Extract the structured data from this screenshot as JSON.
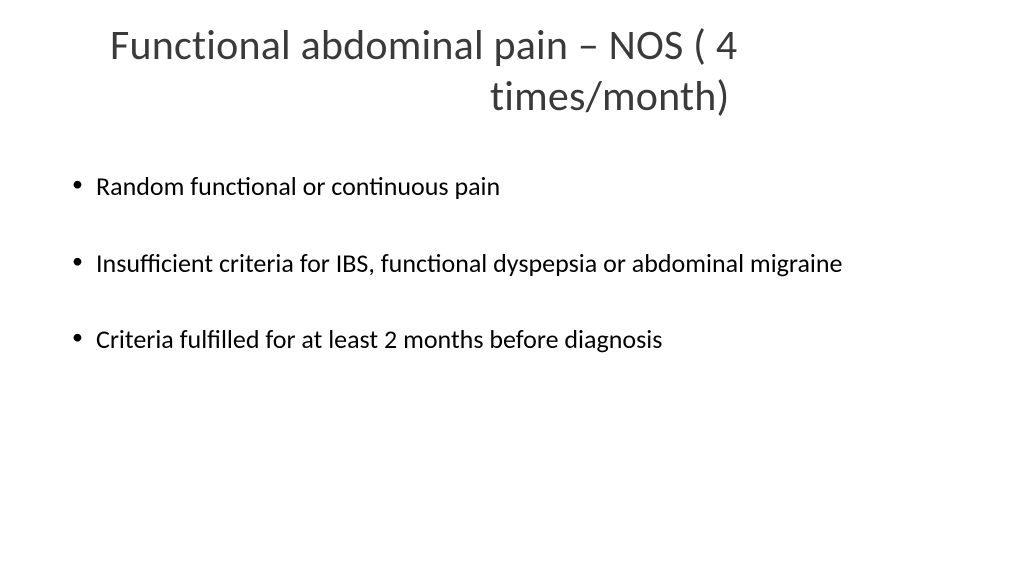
{
  "slide": {
    "title_line1": "Functional abdominal pain – NOS ( 4",
    "title_line2": "times/month)",
    "bullets": [
      "Random functional or continuous pain",
      "Insufficient criteria for IBS, functional dyspepsia or abdominal migraine",
      "Criteria fulfilled for at least 2 months before diagnosis"
    ]
  },
  "style": {
    "background_color": "#ffffff",
    "title_color": "#3a3a3a",
    "title_fontsize": 42,
    "body_color": "#000000",
    "body_fontsize": 26,
    "bullet_color": "#000000",
    "font_family": "Calibri"
  }
}
